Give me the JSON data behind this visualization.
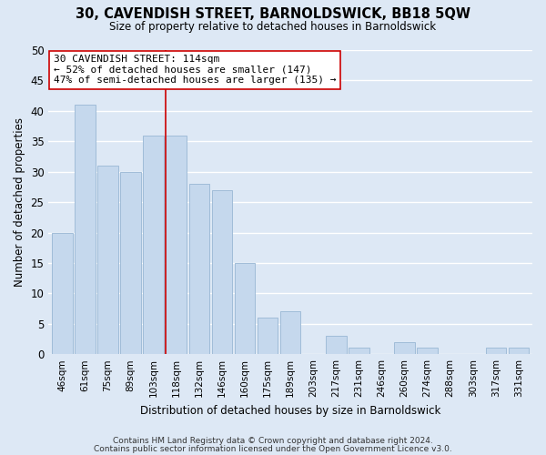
{
  "title": "30, CAVENDISH STREET, BARNOLDSWICK, BB18 5QW",
  "subtitle": "Size of property relative to detached houses in Barnoldswick",
  "xlabel": "Distribution of detached houses by size in Barnoldswick",
  "ylabel": "Number of detached properties",
  "bar_color": "#c5d8ed",
  "bar_edge_color": "#a0bcd8",
  "categories": [
    "46sqm",
    "61sqm",
    "75sqm",
    "89sqm",
    "103sqm",
    "118sqm",
    "132sqm",
    "146sqm",
    "160sqm",
    "175sqm",
    "189sqm",
    "203sqm",
    "217sqm",
    "231sqm",
    "246sqm",
    "260sqm",
    "274sqm",
    "288sqm",
    "303sqm",
    "317sqm",
    "331sqm"
  ],
  "values": [
    20,
    41,
    31,
    30,
    36,
    36,
    28,
    27,
    15,
    6,
    7,
    0,
    3,
    1,
    0,
    2,
    1,
    0,
    0,
    1,
    1
  ],
  "ylim": [
    0,
    50
  ],
  "yticks": [
    0,
    5,
    10,
    15,
    20,
    25,
    30,
    35,
    40,
    45,
    50
  ],
  "vline_color": "#cc0000",
  "annotation_title": "30 CAVENDISH STREET: 114sqm",
  "annotation_line1": "← 52% of detached houses are smaller (147)",
  "annotation_line2": "47% of semi-detached houses are larger (135) →",
  "annotation_box_color": "#ffffff",
  "annotation_box_edge": "#cc0000",
  "footer1": "Contains HM Land Registry data © Crown copyright and database right 2024.",
  "footer2": "Contains public sector information licensed under the Open Government Licence v3.0.",
  "background_color": "#dde8f5",
  "plot_bg_color": "#dde8f5",
  "grid_color": "#ffffff"
}
